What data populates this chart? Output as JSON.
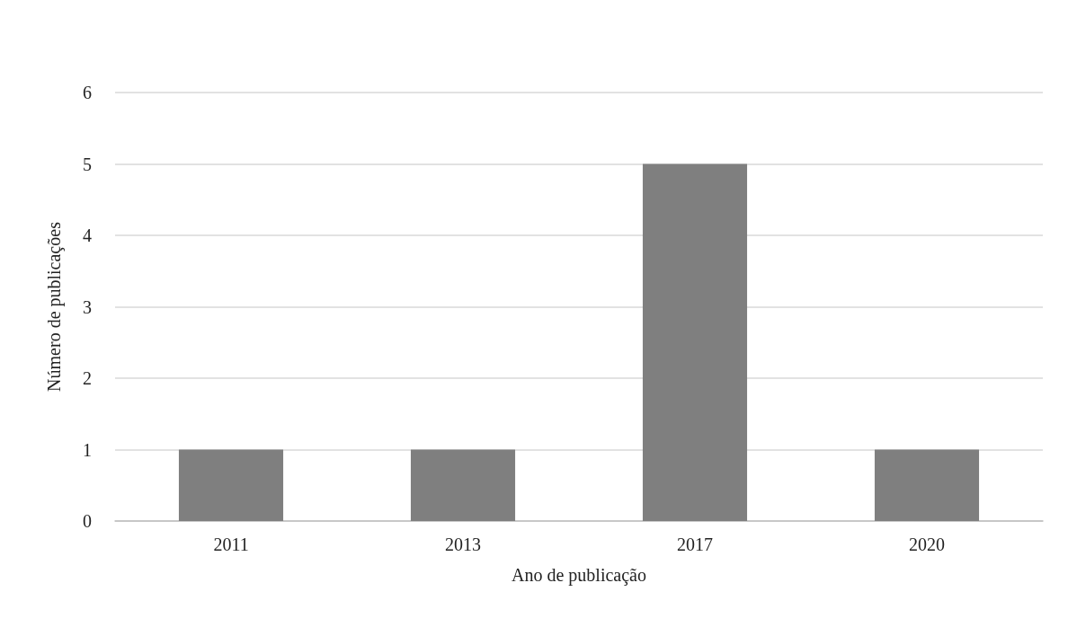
{
  "chart_data": {
    "type": "bar",
    "xlabel": "Ano de publicação",
    "ylabel": "Número de publicações",
    "categories": [
      "2011",
      "2013",
      "2017",
      "2020"
    ],
    "values": [
      1,
      1,
      5,
      1
    ],
    "color": "#7f7f7f",
    "ylim": [
      0,
      6
    ],
    "yticks": [
      0,
      1,
      2,
      3,
      4,
      5,
      6
    ],
    "grid": "y"
  }
}
